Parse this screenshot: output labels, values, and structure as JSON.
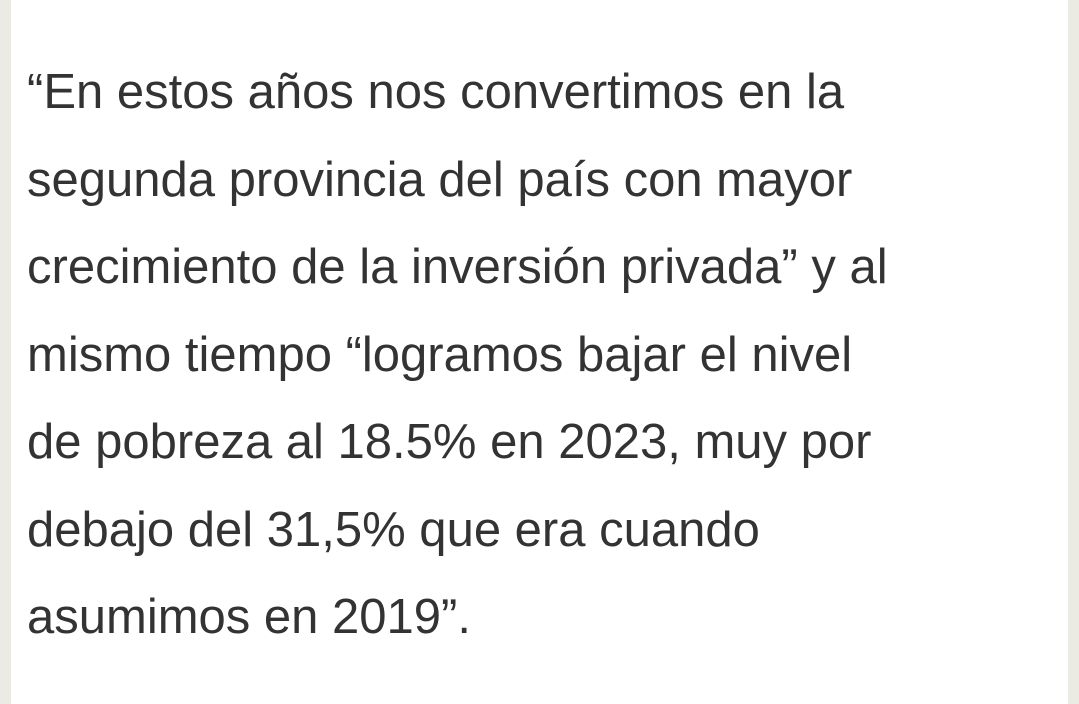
{
  "paragraph": {
    "lines": [
      "“En estos años nos convertimos en la",
      "segunda provincia del país con mayor",
      "crecimiento de la inversión privada” y al",
      "mismo tiempo “logramos bajar el nivel",
      "de pobreza al 18.5% en 2023, muy por",
      "debajo del 31,5% que era cuando",
      "asumimos en 2019”."
    ]
  }
}
